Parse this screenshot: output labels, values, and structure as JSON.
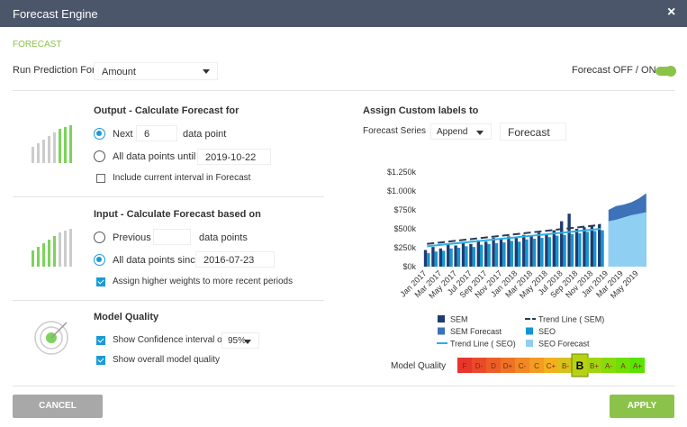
{
  "header": {
    "title": "Forecast Engine",
    "close": "×"
  },
  "section": "FORECAST",
  "run_prediction": {
    "label": "Run Prediction For",
    "value": "Amount"
  },
  "toggle": {
    "label": "Forecast OFF / ON",
    "on": true
  },
  "output": {
    "title": "Output - Calculate Forecast for",
    "next": {
      "label": "Next",
      "value": 6,
      "unit": "data point",
      "selected": true
    },
    "until": {
      "label": "All data points until",
      "value": "2019-10-22",
      "selected": false
    },
    "include_current": {
      "label": "Include current interval in Forecast",
      "checked": false
    }
  },
  "input": {
    "title": "Input - Calculate Forecast based on",
    "previous": {
      "label": "Previous",
      "unit": "data points",
      "selected": false
    },
    "since": {
      "label": "All data points since",
      "value": "2016-07-23",
      "selected": true
    },
    "weights": {
      "label": "Assign higher weights to more recent periods",
      "checked": true
    }
  },
  "model_quality": {
    "title": "Model Quality",
    "confidence": {
      "label": "Show Confidence interval of",
      "value": "95%",
      "checked": true
    },
    "overall": {
      "label": "Show overall model quality",
      "checked": true
    }
  },
  "custom_labels": {
    "title": "Assign Custom labels to",
    "series_label": "Forecast Series",
    "mode": "Append",
    "name": "Forecast"
  },
  "chart_data": {
    "type": "bar",
    "categories": [
      "Jan 2017",
      null,
      "Mar 2017",
      null,
      "May 2017",
      null,
      "Jul 2017",
      null,
      "Sep 2017",
      null,
      "Nov 2017",
      null,
      "Jan 2018",
      null,
      "Mar 2018",
      null,
      "May 2018",
      null,
      "Jul 2018",
      null,
      "Sep 2018",
      null,
      "Nov 2018",
      null,
      "Jan 2019",
      null,
      "Mar 2019",
      null,
      "May 2019",
      null
    ],
    "ylim": [
      0,
      1250
    ],
    "yticks": [
      {
        "value": 0,
        "label": "$0k"
      },
      {
        "value": 250,
        "label": "$250k"
      },
      {
        "value": 500,
        "label": "$500k"
      },
      {
        "value": 750,
        "label": "$750k"
      },
      {
        "value": 1000,
        "label": "$1.000k"
      },
      {
        "value": 1250,
        "label": "$1.250k"
      }
    ],
    "series": [
      {
        "name": "SEM",
        "color": "#1f3b70",
        "style": "bar",
        "values": [
          220,
          260,
          240,
          300,
          280,
          320,
          300,
          350,
          330,
          380,
          360,
          400,
          380,
          420,
          400,
          450,
          430,
          480,
          600,
          700,
          500,
          520,
          540,
          560,
          null,
          null,
          null,
          null,
          null,
          null
        ]
      },
      {
        "name": "Trend Line ( SEM)",
        "color": "#2b3a55",
        "style": "dashed-line",
        "values": [
          300,
          311,
          322,
          333,
          344,
          355,
          366,
          377,
          388,
          399,
          410,
          421,
          432,
          443,
          454,
          465,
          476,
          487,
          498,
          509,
          520,
          531,
          542,
          553,
          null,
          null,
          null,
          null,
          null,
          null
        ]
      },
      {
        "name": "SEM Forecast",
        "color": "#3d72b8",
        "style": "area",
        "values": [
          null,
          null,
          null,
          null,
          null,
          null,
          null,
          null,
          null,
          null,
          null,
          null,
          null,
          null,
          null,
          null,
          null,
          null,
          null,
          null,
          null,
          null,
          null,
          null,
          750,
          800,
          820,
          850,
          900,
          970
        ]
      },
      {
        "name": "SEO",
        "color": "#1595d3",
        "style": "bar",
        "values": [
          180,
          200,
          210,
          240,
          250,
          270,
          260,
          290,
          300,
          310,
          320,
          340,
          330,
          360,
          370,
          380,
          390,
          410,
          420,
          430,
          440,
          460,
          470,
          480,
          null,
          null,
          null,
          null,
          null,
          null
        ]
      },
      {
        "name": "Trend Line ( SEO)",
        "color": "#29b0e8",
        "style": "line",
        "values": [
          270,
          280,
          290,
          300,
          310,
          320,
          330,
          340,
          350,
          360,
          370,
          380,
          390,
          400,
          410,
          420,
          430,
          440,
          450,
          460,
          470,
          480,
          490,
          500,
          null,
          null,
          null,
          null,
          null,
          null
        ]
      },
      {
        "name": "SEO Forecast",
        "color": "#8fd0f2",
        "style": "area",
        "values": [
          null,
          null,
          null,
          null,
          null,
          null,
          null,
          null,
          null,
          null,
          null,
          null,
          null,
          null,
          null,
          null,
          null,
          null,
          null,
          null,
          null,
          null,
          null,
          null,
          600,
          620,
          650,
          680,
          700,
          720
        ]
      }
    ]
  },
  "quality_scale": {
    "label": "Model Quality",
    "grades": [
      "F",
      "D-",
      "D",
      "D+",
      "C-",
      "C",
      "C+",
      "B-",
      "B",
      "B+",
      "A-",
      "A",
      "A+"
    ],
    "colors": [
      "#e8352b",
      "#ea4a2a",
      "#ec5e28",
      "#ee7326",
      "#f08824",
      "#f29c22",
      "#f4b01f",
      "#d6c21a",
      "#b8d115",
      "#a0d60f",
      "#88db0a",
      "#70df05",
      "#58e300"
    ],
    "selected": 8
  },
  "buttons": {
    "cancel": "CANCEL",
    "apply": "APPLY"
  }
}
